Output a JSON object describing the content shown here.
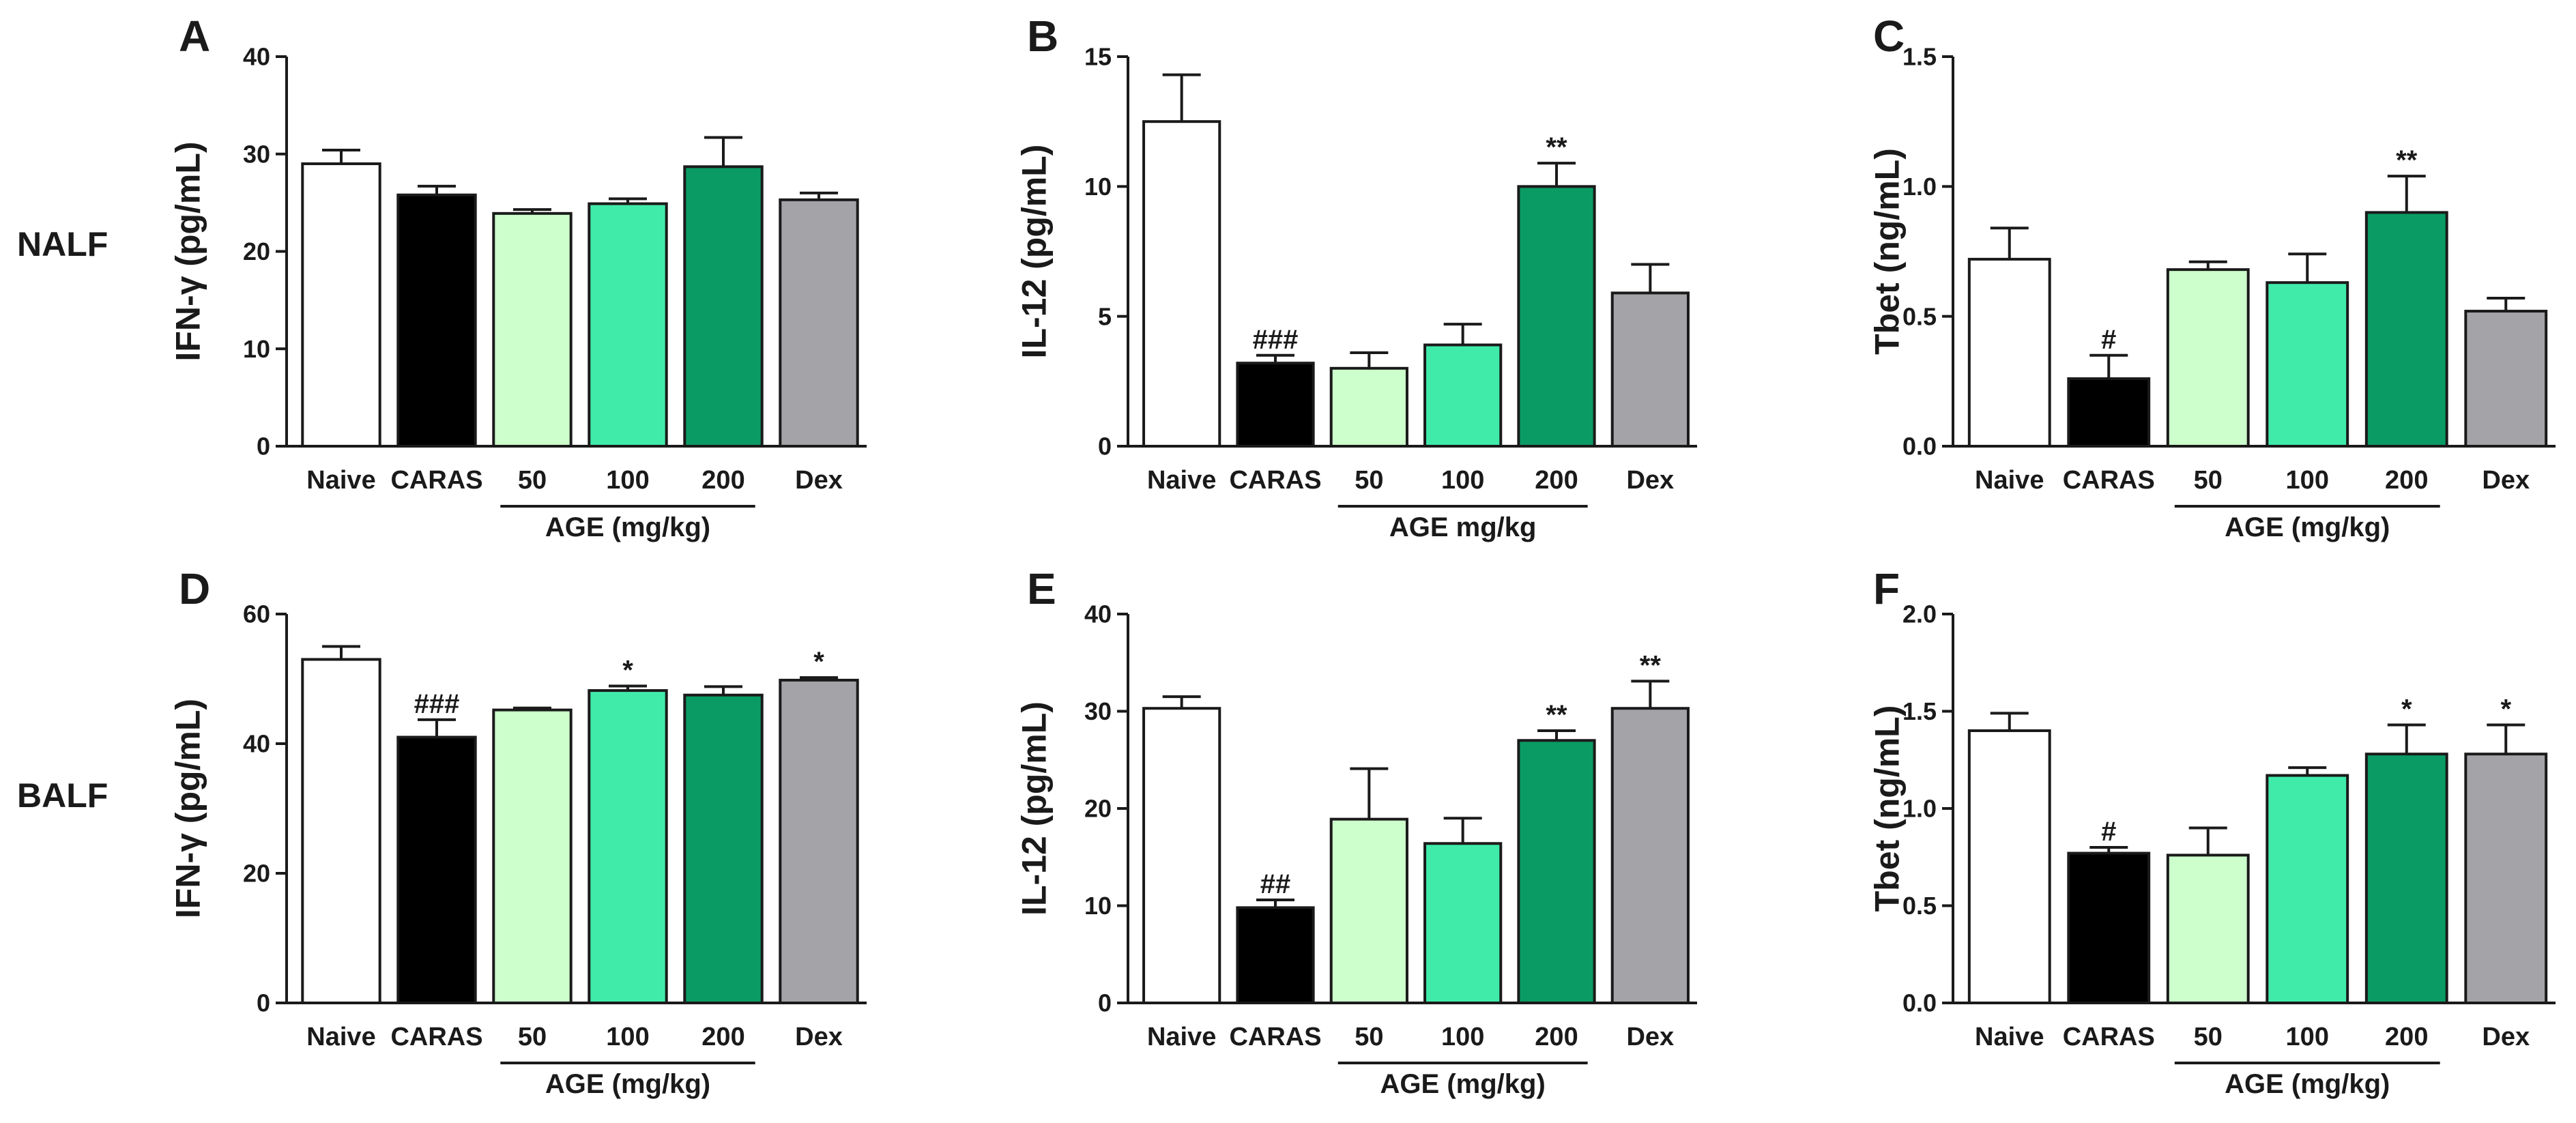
{
  "rows": [
    {
      "label": "NALF"
    },
    {
      "label": "BALF"
    }
  ],
  "colors": {
    "axis": "#1a1a1a",
    "bars": [
      "#ffffff",
      "#000000",
      "#ccffcc",
      "#40ebaa",
      "#0a9b64",
      "#a3a3a8"
    ]
  },
  "chart_data": [
    {
      "type": "bar",
      "panel": "A",
      "title": "",
      "xlabel": "",
      "ylabel": "IFN-γ (pg/mL)",
      "categories": [
        "Naive",
        "CARAS",
        "50",
        "100",
        "200",
        "Dex"
      ],
      "values": [
        29,
        25.8,
        23.9,
        24.9,
        28.7,
        25.3
      ],
      "errors": [
        1.4,
        0.9,
        0.4,
        0.5,
        3.0,
        0.7
      ],
      "annotations": [
        "",
        "",
        "",
        "",
        "",
        ""
      ],
      "ylim": [
        0,
        40
      ],
      "yticks": [
        "0",
        "10",
        "20",
        "30",
        "40"
      ],
      "group_label": "AGE (mg/kg)"
    },
    {
      "type": "bar",
      "panel": "B",
      "title": "",
      "xlabel": "",
      "ylabel": "IL-12 (pg/mL)",
      "categories": [
        "Naive",
        "CARAS",
        "50",
        "100",
        "200",
        "Dex"
      ],
      "values": [
        12.5,
        3.2,
        3.0,
        3.9,
        10.0,
        5.9
      ],
      "errors": [
        1.8,
        0.3,
        0.6,
        0.8,
        0.9,
        1.1
      ],
      "annotations": [
        "",
        "###",
        "",
        "",
        "**",
        ""
      ],
      "ylim": [
        0,
        15
      ],
      "yticks": [
        "0",
        "5",
        "10",
        "15"
      ],
      "group_label": "AGE mg/kg"
    },
    {
      "type": "bar",
      "panel": "C",
      "title": "",
      "xlabel": "",
      "ylabel": "Tbet (ng/mL)",
      "categories": [
        "Naive",
        "CARAS",
        "50",
        "100",
        "200",
        "Dex"
      ],
      "values": [
        0.72,
        0.26,
        0.68,
        0.63,
        0.9,
        0.52
      ],
      "errors": [
        0.12,
        0.09,
        0.03,
        0.11,
        0.14,
        0.05
      ],
      "annotations": [
        "",
        "#",
        "",
        "",
        "**",
        ""
      ],
      "ylim": [
        0,
        1.5
      ],
      "yticks": [
        "0.0",
        "0.5",
        "1.0",
        "1.5"
      ],
      "group_label": "AGE (mg/kg)"
    },
    {
      "type": "bar",
      "panel": "D",
      "title": "",
      "xlabel": "",
      "ylabel": "IFN-γ (pg/mL)",
      "categories": [
        "Naive",
        "CARAS",
        "50",
        "100",
        "200",
        "Dex"
      ],
      "values": [
        53,
        41,
        45.2,
        48.2,
        47.5,
        49.8
      ],
      "errors": [
        2.0,
        2.7,
        0.3,
        0.7,
        1.3,
        0.4
      ],
      "annotations": [
        "",
        "###",
        "",
        "*",
        "",
        "*"
      ],
      "ylim": [
        0,
        60
      ],
      "yticks": [
        "0",
        "20",
        "40",
        "60"
      ],
      "group_label": "AGE (mg/kg)"
    },
    {
      "type": "bar",
      "panel": "E",
      "title": "",
      "xlabel": "",
      "ylabel": "IL-12 (pg/mL)",
      "categories": [
        "Naive",
        "CARAS",
        "50",
        "100",
        "200",
        "Dex"
      ],
      "values": [
        30.3,
        9.8,
        18.9,
        16.4,
        27,
        30.3
      ],
      "errors": [
        1.2,
        0.8,
        5.2,
        2.6,
        1.0,
        2.8
      ],
      "annotations": [
        "",
        "##",
        "",
        "",
        "**",
        "**"
      ],
      "ylim": [
        0,
        40
      ],
      "yticks": [
        "0",
        "10",
        "20",
        "30",
        "40"
      ],
      "group_label": "AGE (mg/kg)"
    },
    {
      "type": "bar",
      "panel": "F",
      "title": "",
      "xlabel": "",
      "ylabel": "Tbet (ng/mL)",
      "categories": [
        "Naive",
        "CARAS",
        "50",
        "100",
        "200",
        "Dex"
      ],
      "values": [
        1.4,
        0.77,
        0.76,
        1.17,
        1.28,
        1.28
      ],
      "errors": [
        0.09,
        0.03,
        0.14,
        0.04,
        0.15,
        0.15
      ],
      "annotations": [
        "",
        "#",
        "",
        "",
        "*",
        "*"
      ],
      "ylim": [
        0,
        2.0
      ],
      "yticks": [
        "0.0",
        "0.5",
        "1.0",
        "1.5",
        "2.0"
      ],
      "group_label": "AGE (mg/kg)"
    }
  ]
}
